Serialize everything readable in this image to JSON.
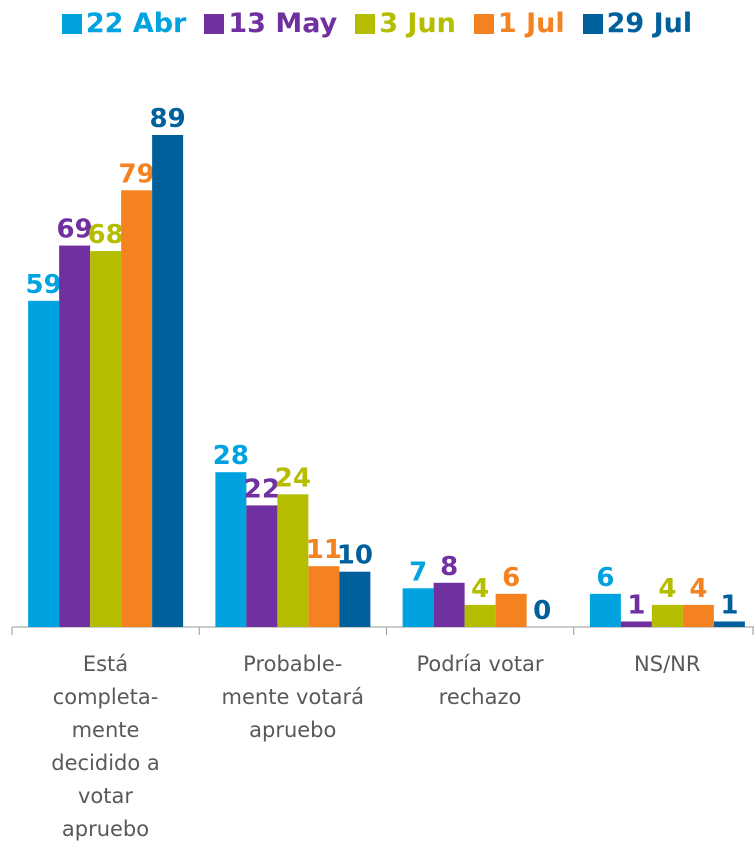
{
  "chart_data": {
    "type": "bar",
    "categories": [
      "Está\ncompleta-\nmente\ndecidido a\nvotar\napruebo",
      "Probable-\nmente votará\napruebo",
      "Podría votar\nrechazo",
      "NS/NR"
    ],
    "series": [
      {
        "name": "22 Abr",
        "color": "#00a3e0",
        "values": [
          59,
          28,
          7,
          6
        ]
      },
      {
        "name": "13 May",
        "color": "#7030a0",
        "values": [
          69,
          22,
          8,
          1
        ]
      },
      {
        "name": "3 Jun",
        "color": "#b5bd00",
        "values": [
          68,
          24,
          4,
          4
        ]
      },
      {
        "name": "1 Jul",
        "color": "#f58220",
        "values": [
          79,
          11,
          6,
          4
        ]
      },
      {
        "name": "29 Jul",
        "color": "#00609c",
        "values": [
          89,
          10,
          0,
          1
        ]
      }
    ]
  }
}
